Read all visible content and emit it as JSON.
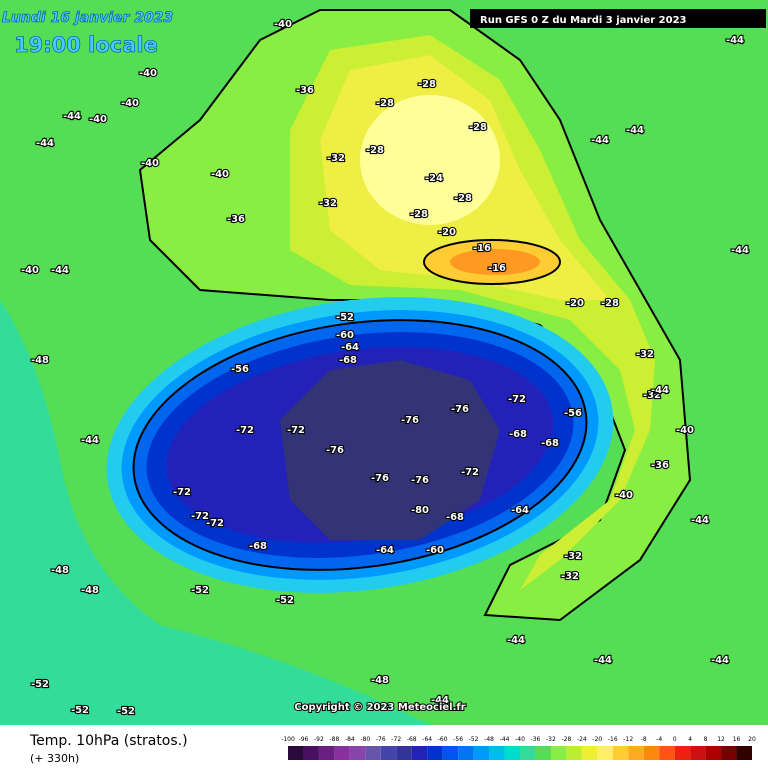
{
  "header": {
    "date": "Lundi 16 janvier 2023",
    "time": "19:00 locale",
    "run": "Run GFS 0 Z du Mardi 3 janvier 2023"
  },
  "credit": "Copyright © 2023 Meteociel.fr",
  "legend": {
    "title": "Temp. 10hPa (stratos.)",
    "lead": "(+ 330h)",
    "scale": [
      -100,
      -96,
      -92,
      -88,
      -84,
      -80,
      -76,
      -72,
      -68,
      -64,
      -60,
      -56,
      -52,
      -48,
      -44,
      -40,
      -36,
      -32,
      -28,
      -24,
      -20,
      -16,
      -12,
      -8,
      -4,
      0,
      4,
      8,
      12,
      16,
      20
    ]
  },
  "contour_labels": [
    -40,
    -40,
    -40,
    -44,
    -44,
    -40,
    -40,
    -40,
    -36,
    -36,
    -28,
    -28,
    -28,
    -28,
    -32,
    -32,
    -24,
    -28,
    -28,
    -20,
    -16,
    -16,
    -20,
    -28,
    -32,
    -32,
    -40,
    -36,
    -40,
    -32,
    -32,
    -52,
    -60,
    -64,
    -68,
    -56,
    -72,
    -72,
    -76,
    -76,
    -76,
    -72,
    -68,
    -68,
    -72,
    -76,
    -76,
    -80,
    -68,
    -68,
    -64,
    -60,
    -72,
    -72,
    -72,
    -64,
    -56,
    -52,
    -52,
    -44,
    -48,
    -48,
    -40,
    -44,
    -44,
    -48,
    -48,
    -52,
    -52,
    -52,
    -44,
    -44,
    -44,
    -44,
    -44,
    -44,
    -44,
    -44,
    -44
  ]
}
